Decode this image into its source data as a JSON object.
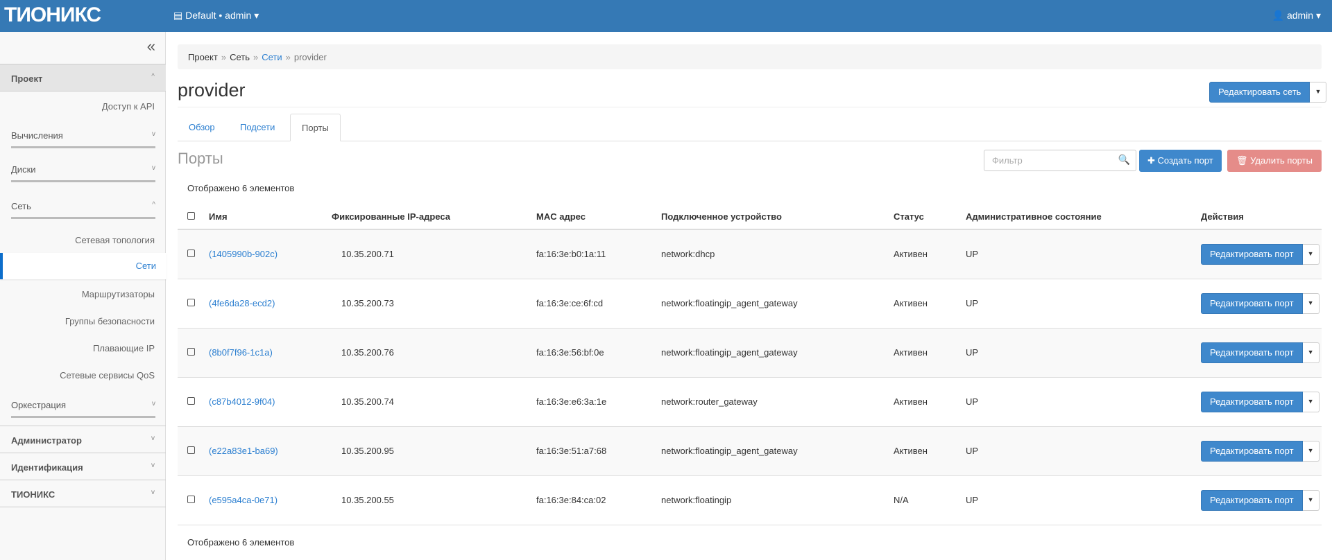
{
  "header": {
    "logo": "ТИОНИКС",
    "project": "Default • admin",
    "user": "admin"
  },
  "sidebar": {
    "project": "Проект",
    "api": "Доступ к API",
    "compute": "Вычисления",
    "volumes": "Диски",
    "network": "Сеть",
    "network_items": [
      "Сетевая топология",
      "Сети",
      "Маршрутизаторы",
      "Группы безопасности",
      "Плавающие IP",
      "Сетевые сервисы QoS"
    ],
    "orchestration": "Оркестрация",
    "admin": "Администратор",
    "identity": "Идентификация",
    "tionix": "ТИОНИКС"
  },
  "breadcrumb": [
    "Проект",
    "Сеть",
    "Сети",
    "provider"
  ],
  "title": "provider",
  "edit_network": "Редактировать сеть",
  "tabs": [
    "Обзор",
    "Подсети",
    "Порты"
  ],
  "section_title": "Порты",
  "filter_placeholder": "Фильтр",
  "create_port": "Создать порт",
  "delete_ports": "Удалить порты",
  "count_text": "Отображено 6 элементов",
  "columns": [
    "Имя",
    "Фиксированные IP-адреса",
    "MAC адрес",
    "Подключенное устройство",
    "Статус",
    "Административное состояние",
    "Действия"
  ],
  "edit_port": "Редактировать порт",
  "rows": [
    {
      "name": "(1405990b-902c)",
      "ip": "10.35.200.71",
      "mac": "fa:16:3e:b0:1a:11",
      "device": "network:dhcp",
      "status": "Активен",
      "admin": "UP"
    },
    {
      "name": "(4fe6da28-ecd2)",
      "ip": "10.35.200.73",
      "mac": "fa:16:3e:ce:6f:cd",
      "device": "network:floatingip_agent_gateway",
      "status": "Активен",
      "admin": "UP"
    },
    {
      "name": "(8b0f7f96-1c1a)",
      "ip": "10.35.200.76",
      "mac": "fa:16:3e:56:bf:0e",
      "device": "network:floatingip_agent_gateway",
      "status": "Активен",
      "admin": "UP"
    },
    {
      "name": "(c87b4012-9f04)",
      "ip": "10.35.200.74",
      "mac": "fa:16:3e:e6:3a:1e",
      "device": "network:router_gateway",
      "status": "Активен",
      "admin": "UP"
    },
    {
      "name": "(e22a83e1-ba69)",
      "ip": "10.35.200.95",
      "mac": "fa:16:3e:51:a7:68",
      "device": "network:floatingip_agent_gateway",
      "status": "Активен",
      "admin": "UP"
    },
    {
      "name": "(e595a4ca-0e71)",
      "ip": "10.35.200.55",
      "mac": "fa:16:3e:84:ca:02",
      "device": "network:floatingip",
      "status": "N/A",
      "admin": "UP"
    }
  ]
}
